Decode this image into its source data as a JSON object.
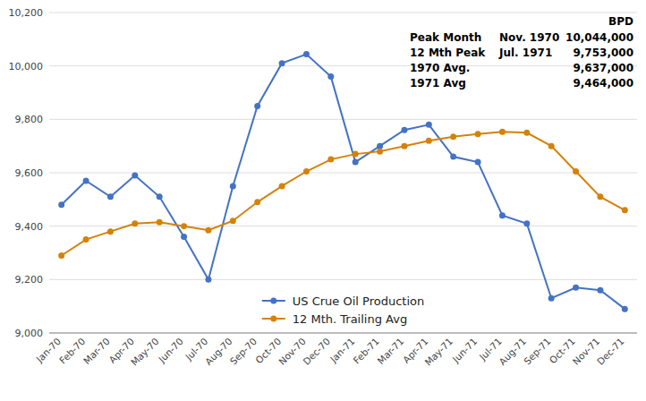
{
  "chart_data": {
    "type": "line",
    "categories": [
      "Jan-70",
      "Feb-70",
      "Mar-70",
      "Apr-70",
      "May-70",
      "Jun-70",
      "Jul-70",
      "Aug-70",
      "Sep-70",
      "Oct-70",
      "Nov-70",
      "Dec-70",
      "Jan-71",
      "Feb-71",
      "Mar-71",
      "Apr-71",
      "May-71",
      "Jun-71",
      "Jul-71",
      "Aug-71",
      "Sep-71",
      "Oct-71",
      "Nov-71",
      "Dec-71"
    ],
    "series": [
      {
        "name": "US Crue Oil Production",
        "color": "#4472C4",
        "marker": "circle",
        "values": [
          9480,
          9570,
          9510,
          9590,
          9510,
          9360,
          9200,
          9550,
          9850,
          10010,
          10044,
          9960,
          9640,
          9700,
          9760,
          9780,
          9660,
          9640,
          9440,
          9410,
          9130,
          9170,
          9160,
          9090
        ]
      },
      {
        "name": "12 Mth. Trailing Avg",
        "color": "#D4820A",
        "marker": "circle",
        "values": [
          9290,
          9350,
          9380,
          9410,
          9415,
          9400,
          9385,
          9420,
          9490,
          9550,
          9605,
          9650,
          9670,
          9680,
          9700,
          9720,
          9735,
          9745,
          9753,
          9750,
          9700,
          9605,
          9510,
          9460
        ]
      }
    ],
    "ylim": [
      9000,
      10200
    ],
    "yticks": [
      {
        "value": 9000,
        "label": "9,000"
      },
      {
        "value": 9200,
        "label": "9,200"
      },
      {
        "value": 9400,
        "label": "9,400"
      },
      {
        "value": 9600,
        "label": "9,600"
      },
      {
        "value": 9800,
        "label": "9,800"
      },
      {
        "value": 10000,
        "label": "10,000"
      },
      {
        "value": 10200,
        "label": "10,200"
      }
    ],
    "grid": true,
    "legend": "lower center",
    "annotations": {
      "header": "BPD",
      "rows": [
        {
          "label": "Peak Month",
          "date": "Nov. 1970",
          "value": "10,044,000"
        },
        {
          "label": "12 Mth Peak",
          "date": "Jul. 1971",
          "value": "9,753,000"
        },
        {
          "label": "1970 Avg.",
          "value": "9,637,000"
        },
        {
          "label": "1971 Avg",
          "value": "9,464,000"
        }
      ]
    }
  }
}
